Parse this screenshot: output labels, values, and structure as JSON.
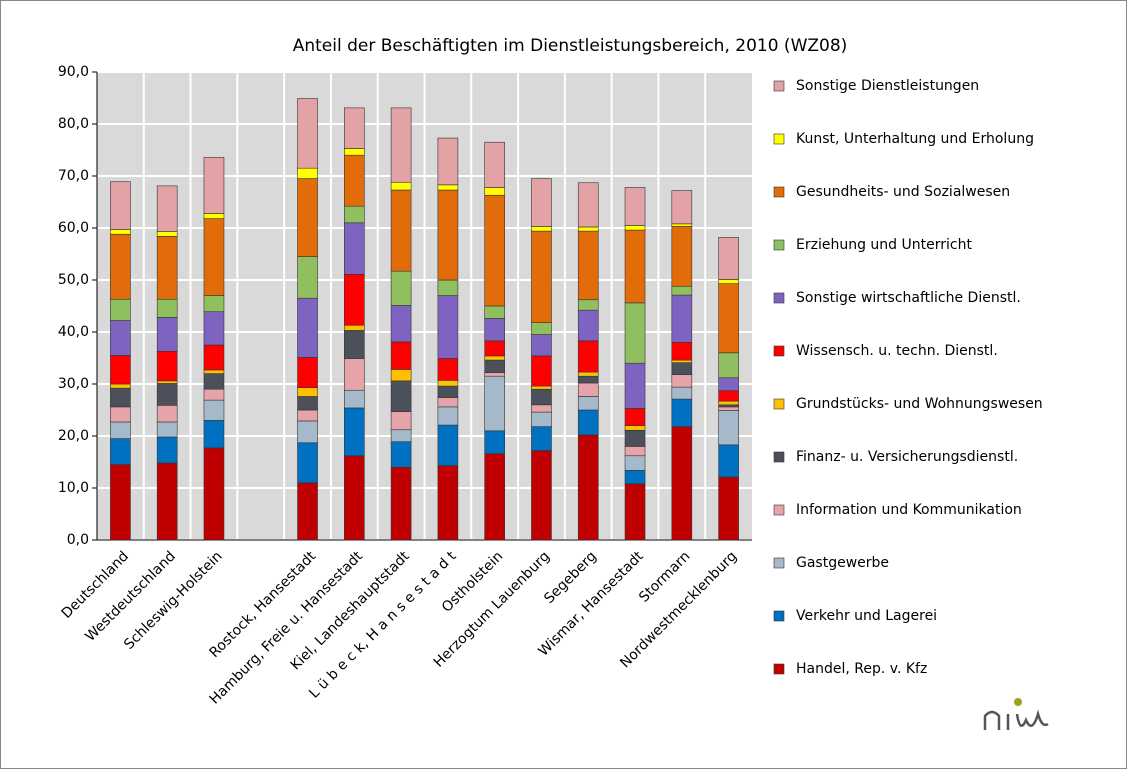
{
  "chart_data": {
    "type": "stacked-bar",
    "title": "Anteil der Beschäftigten im Dienstleistungsbereich, 2010 (WZ08)",
    "categories": [
      "Deutschland",
      "Westdeutschland",
      "Schleswig-Holstein",
      null,
      "Rostock, Hansestadt",
      "Hamburg, Freie u. Hansestadt",
      "Kiel, Landeshauptstadt",
      "L ü b e c k, H a n s e s t a d t",
      "Ostholstein",
      "Herzogtum Lauenburg",
      "Segeberg",
      "Wismar, Hansestadt",
      "Stormarn",
      "Nordwestmecklenburg"
    ],
    "series": [
      {
        "name": "Handel, Rep. v. Kfz",
        "color": "#c00000",
        "values": [
          14.5,
          14.8,
          17.7,
          null,
          11.0,
          16.2,
          14.0,
          14.3,
          16.6,
          17.2,
          20.2,
          10.8,
          21.8,
          12.1
        ]
      },
      {
        "name": "Verkehr und Lagerei",
        "color": "#0070c0",
        "values": [
          5.0,
          5.0,
          5.3,
          null,
          7.7,
          9.2,
          4.9,
          7.8,
          4.4,
          4.6,
          4.8,
          2.6,
          5.3,
          6.2
        ]
      },
      {
        "name": "Gastgewerbe",
        "color": "#a6b9cb",
        "values": [
          3.2,
          2.9,
          3.9,
          null,
          4.2,
          3.4,
          2.3,
          3.5,
          10.5,
          2.8,
          2.6,
          2.8,
          2.3,
          6.6
        ]
      },
      {
        "name": "Information und Kommunikation",
        "color": "#e6a3aa",
        "values": [
          2.9,
          3.2,
          2.1,
          null,
          2.1,
          6.1,
          3.5,
          1.8,
          0.7,
          1.4,
          2.6,
          1.8,
          2.4,
          0.7
        ]
      },
      {
        "name": "Finanz- u. Versicherungsdienstl.",
        "color": "#4b505a",
        "values": [
          3.6,
          4.2,
          3.0,
          null,
          2.6,
          5.4,
          5.9,
          2.2,
          2.4,
          3.0,
          1.3,
          3.1,
          2.3,
          0.4
        ]
      },
      {
        "name": "Grundstücks- und Wohnungswesen",
        "color": "#ffc000",
        "values": [
          0.8,
          0.5,
          0.7,
          null,
          1.7,
          1.0,
          2.2,
          1.1,
          0.8,
          0.6,
          0.8,
          0.9,
          0.5,
          0.7
        ]
      },
      {
        "name": "Wissensch. u. techn. Dienstl.",
        "color": "#ff0000",
        "values": [
          5.5,
          5.7,
          4.8,
          null,
          5.8,
          9.8,
          5.3,
          4.2,
          2.9,
          5.8,
          6.0,
          3.3,
          3.4,
          2.0
        ]
      },
      {
        "name": "Sonstige wirtschaftliche Dienstl.",
        "color": "#7f63c0",
        "values": [
          6.7,
          6.5,
          6.4,
          null,
          11.4,
          9.9,
          7.0,
          12.1,
          4.3,
          4.1,
          5.9,
          8.7,
          9.1,
          2.5
        ]
      },
      {
        "name": "Erziehung und Unterricht",
        "color": "#8fbf5f",
        "values": [
          4.1,
          3.5,
          3.1,
          null,
          8.0,
          3.2,
          6.6,
          3.0,
          2.4,
          2.3,
          2.0,
          11.6,
          1.7,
          4.8
        ]
      },
      {
        "name": "Gesundheits- und Sozialwesen",
        "color": "#e36c0a",
        "values": [
          12.5,
          12.1,
          14.8,
          null,
          15.0,
          9.8,
          15.6,
          17.3,
          21.3,
          17.6,
          13.2,
          14.0,
          11.5,
          13.3
        ]
      },
      {
        "name": "Kunst, Unterhaltung und Erholung",
        "color": "#ffff00",
        "values": [
          0.9,
          0.9,
          1.0,
          null,
          2.0,
          1.3,
          1.5,
          1.0,
          1.5,
          0.9,
          0.8,
          0.9,
          0.5,
          0.8
        ]
      },
      {
        "name": "Sonstige Dienstleistungen",
        "color": "#e2a2a6",
        "values": [
          9.2,
          8.8,
          10.8,
          null,
          13.4,
          7.8,
          14.3,
          9.0,
          8.7,
          9.2,
          8.5,
          7.3,
          6.4,
          8.1
        ]
      }
    ],
    "ylim": [
      0,
      90
    ],
    "yticks": [
      {
        "value": 0,
        "label": "0,0"
      },
      {
        "value": 10,
        "label": "10,0"
      },
      {
        "value": 20,
        "label": "20,0"
      },
      {
        "value": 30,
        "label": "30,0"
      },
      {
        "value": 40,
        "label": "40,0"
      },
      {
        "value": 50,
        "label": "50,0"
      },
      {
        "value": 60,
        "label": "60,0"
      },
      {
        "value": 70,
        "label": "70,0"
      },
      {
        "value": 80,
        "label": "80,0"
      },
      {
        "value": 90,
        "label": "90,0"
      }
    ],
    "grid": true,
    "legend": "right"
  }
}
